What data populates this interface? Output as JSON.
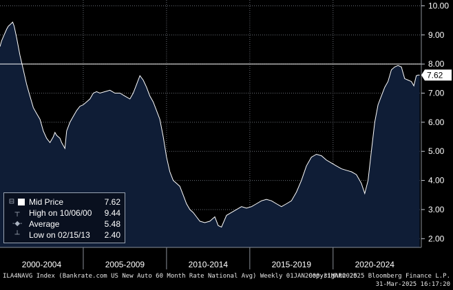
{
  "chart_data": {
    "type": "area",
    "ylim": [
      1.7,
      10.2
    ],
    "xlim": [
      2000.0,
      2025.3
    ],
    "y_ticks": [
      "2.00",
      "3.00",
      "4.00",
      "5.00",
      "6.00",
      "7.00",
      "8.00",
      "9.00",
      "10.00"
    ],
    "x_period_labels": [
      "2000-2004",
      "2005-2009",
      "2010-2014",
      "2015-2019",
      "2020-2024"
    ],
    "x_period_bounds": [
      2000.0,
      2005.0,
      2010.0,
      2015.0,
      2020.0,
      2025.0
    ],
    "reference_line": 8.0,
    "last_value": 7.62,
    "series": [
      {
        "x": [
          2000.0,
          2000.1,
          2000.25,
          2000.4,
          2000.5,
          2000.6,
          2000.76,
          2000.85,
          2001.0,
          2001.2,
          2001.4,
          2001.6,
          2001.8,
          2002.0,
          2002.2,
          2002.4,
          2002.6,
          2002.8,
          2003.0,
          2003.2,
          2003.3,
          2003.4,
          2003.5,
          2003.6,
          2003.7,
          2003.8,
          2003.9,
          2004.0,
          2004.2,
          2004.4,
          2004.6,
          2004.8,
          2005.0,
          2005.2,
          2005.4,
          2005.6,
          2005.8,
          2006.0,
          2006.3,
          2006.6,
          2006.9,
          2007.2,
          2007.5,
          2007.8,
          2008.0,
          2008.2,
          2008.4,
          2008.6,
          2008.8,
          2009.0,
          2009.2,
          2009.4,
          2009.6,
          2009.8,
          2010.0,
          2010.2,
          2010.4,
          2010.6,
          2010.8,
          2011.0,
          2011.2,
          2011.4,
          2011.6,
          2011.8,
          2012.0,
          2012.3,
          2012.6,
          2012.9,
          2013.1,
          2013.3,
          2013.6,
          2013.9,
          2014.2,
          2014.5,
          2014.8,
          2015.1,
          2015.4,
          2015.7,
          2016.0,
          2016.3,
          2016.6,
          2016.9,
          2017.2,
          2017.5,
          2017.8,
          2018.1,
          2018.4,
          2018.7,
          2019.0,
          2019.3,
          2019.6,
          2019.9,
          2020.2,
          2020.5,
          2020.8,
          2021.1,
          2021.4,
          2021.7,
          2021.9,
          2022.1,
          2022.3,
          2022.5,
          2022.7,
          2022.9,
          2023.1,
          2023.3,
          2023.5,
          2023.7,
          2023.9,
          2024.1,
          2024.3,
          2024.5,
          2024.7,
          2024.85,
          2025.0,
          2025.1,
          2025.2
        ],
        "y": [
          8.6,
          8.8,
          9.0,
          9.2,
          9.3,
          9.35,
          9.44,
          9.3,
          8.9,
          8.3,
          7.8,
          7.3,
          6.9,
          6.5,
          6.3,
          6.1,
          5.7,
          5.45,
          5.3,
          5.5,
          5.65,
          5.55,
          5.5,
          5.45,
          5.3,
          5.2,
          5.1,
          5.7,
          6.0,
          6.2,
          6.4,
          6.55,
          6.6,
          6.7,
          6.8,
          7.0,
          7.05,
          7.0,
          7.05,
          7.1,
          7.0,
          7.0,
          6.9,
          6.8,
          7.0,
          7.3,
          7.6,
          7.45,
          7.2,
          6.9,
          6.7,
          6.4,
          6.1,
          5.5,
          4.8,
          4.3,
          4.0,
          3.9,
          3.8,
          3.5,
          3.2,
          3.0,
          2.9,
          2.75,
          2.6,
          2.55,
          2.6,
          2.75,
          2.45,
          2.4,
          2.8,
          2.9,
          3.0,
          3.1,
          3.05,
          3.1,
          3.2,
          3.3,
          3.35,
          3.3,
          3.2,
          3.1,
          3.2,
          3.3,
          3.6,
          4.0,
          4.5,
          4.8,
          4.9,
          4.85,
          4.7,
          4.6,
          4.5,
          4.4,
          4.35,
          4.3,
          4.2,
          3.9,
          3.55,
          4.0,
          5.0,
          6.0,
          6.6,
          6.9,
          7.2,
          7.4,
          7.8,
          7.9,
          7.95,
          7.9,
          7.5,
          7.45,
          7.4,
          7.25,
          7.6,
          7.62,
          7.62
        ]
      }
    ]
  },
  "legend": {
    "mid_label": "Mid Price",
    "mid_value": "7.62",
    "high_label": "High on 10/06/00",
    "high_value": "9.44",
    "avg_label": "Average",
    "avg_value": "5.48",
    "low_label": "Low on 02/15/13",
    "low_value": "2.40"
  },
  "footer": {
    "left": "ILA4NAVG Index (Bankrate.com US New Auto 60 Month Rate National Avg)  Weekly 01JAN2000-31MAR2025",
    "right_line1": "Copyright© 2025 Bloomberg Finance L.P.",
    "right_line2": "31-Mar-2025 16:17:20"
  },
  "colors": {
    "fill": "#0f1d36",
    "line": "#ffffff",
    "grid": "#6a6f78",
    "last_tag_bg": "#ffffff",
    "last_tag_text": "#000000"
  }
}
